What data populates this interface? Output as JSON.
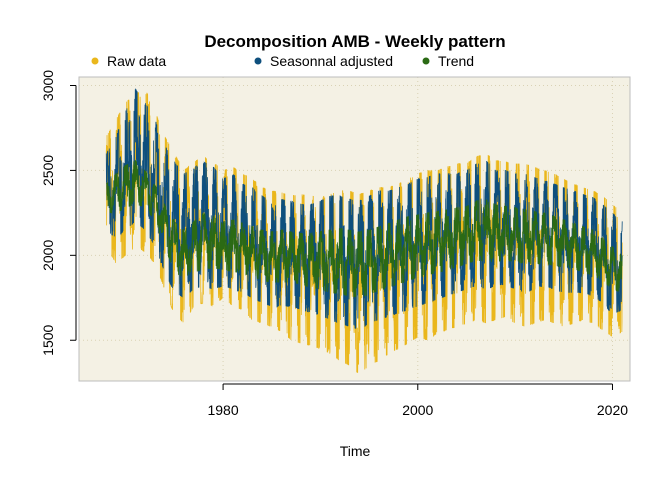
{
  "chart_data": {
    "type": "line",
    "title": "Decomposition AMB - Weekly pattern",
    "xlabel": "Time",
    "ylabel": "",
    "xlim": [
      1965.2,
      2021.8
    ],
    "ylim": [
      1260,
      3050
    ],
    "x_ticks": [
      1980,
      2000,
      2020
    ],
    "x_tick_labels": [
      "1980",
      "2000",
      "2020"
    ],
    "y_ticks": [
      1500,
      2000,
      2500,
      3000
    ],
    "y_tick_labels": [
      "1500",
      "2000",
      "2500",
      "3000"
    ],
    "grid": true,
    "legend_position": "top",
    "background_color": "#f4f1e4",
    "series": [
      {
        "name": "Raw data",
        "color": "#eab71c",
        "x": [
          1968.0,
          1969.0,
          1970.0,
          1971.0,
          1972.0,
          1973.0,
          1974.0,
          1975.0,
          1976.0,
          1977.0,
          1978.0,
          1979.0,
          1980.0,
          1981.0,
          1982.0,
          1983.0,
          1984.0,
          1985.0,
          1986.0,
          1987.0,
          1988.0,
          1989.0,
          1990.0,
          1991.0,
          1992.0,
          1993.0,
          1994.0,
          1995.0,
          1996.0,
          1997.0,
          1998.0,
          1999.0,
          2000.0,
          2001.0,
          2002.0,
          2003.0,
          2004.0,
          2005.0,
          2006.0,
          2007.0,
          2008.0,
          2009.0,
          2010.0,
          2011.0,
          2012.0,
          2013.0,
          2014.0,
          2015.0,
          2016.0,
          2017.0,
          2018.0,
          2019.0,
          2020.0,
          2021.0
        ],
        "min": [
          2050,
          1950,
          2000,
          2050,
          2020,
          1950,
          1800,
          1650,
          1600,
          1700,
          1720,
          1700,
          1750,
          1700,
          1680,
          1620,
          1600,
          1580,
          1550,
          1500,
          1480,
          1470,
          1450,
          1420,
          1380,
          1350,
          1300,
          1350,
          1380,
          1420,
          1450,
          1480,
          1520,
          1500,
          1540,
          1560,
          1580,
          1600,
          1620,
          1600,
          1620,
          1640,
          1600,
          1580,
          1600,
          1620,
          1600,
          1580,
          1600,
          1620,
          1600,
          1560,
          1520,
          1550
        ],
        "max": [
          2700,
          2800,
          2900,
          2950,
          2980,
          2850,
          2700,
          2600,
          2500,
          2550,
          2580,
          2550,
          2500,
          2520,
          2480,
          2450,
          2400,
          2380,
          2370,
          2350,
          2360,
          2350,
          2340,
          2360,
          2380,
          2380,
          2360,
          2380,
          2400,
          2400,
          2420,
          2450,
          2480,
          2500,
          2500,
          2520,
          2540,
          2540,
          2580,
          2600,
          2560,
          2550,
          2540,
          2540,
          2520,
          2500,
          2480,
          2450,
          2420,
          2400,
          2380,
          2350,
          2300,
          2250
        ]
      },
      {
        "name": "Seasonnal adjusted",
        "color": "#0e4f7d",
        "x": [
          1968.0,
          1969.0,
          1970.0,
          1971.0,
          1972.0,
          1973.0,
          1974.0,
          1975.0,
          1976.0,
          1977.0,
          1978.0,
          1979.0,
          1980.0,
          1981.0,
          1982.0,
          1983.0,
          1984.0,
          1985.0,
          1986.0,
          1987.0,
          1988.0,
          1989.0,
          1990.0,
          1991.0,
          1992.0,
          1993.0,
          1994.0,
          1995.0,
          1996.0,
          1997.0,
          1998.0,
          1999.0,
          2000.0,
          2001.0,
          2002.0,
          2003.0,
          2004.0,
          2005.0,
          2006.0,
          2007.0,
          2008.0,
          2009.0,
          2010.0,
          2011.0,
          2012.0,
          2013.0,
          2014.0,
          2015.0,
          2016.0,
          2017.0,
          2018.0,
          2019.0,
          2020.0,
          2021.0
        ],
        "min": [
          2150,
          2100,
          2150,
          2200,
          2150,
          2050,
          1900,
          1780,
          1750,
          1800,
          1820,
          1800,
          1820,
          1800,
          1780,
          1750,
          1720,
          1700,
          1700,
          1700,
          1680,
          1660,
          1650,
          1620,
          1600,
          1580,
          1560,
          1600,
          1620,
          1640,
          1660,
          1680,
          1700,
          1720,
          1740,
          1760,
          1780,
          1800,
          1820,
          1800,
          1820,
          1830,
          1800,
          1780,
          1800,
          1820,
          1800,
          1780,
          1780,
          1780,
          1760,
          1720,
          1650,
          1680
        ],
        "max": [
          2600,
          2700,
          2850,
          2980,
          2900,
          2800,
          2650,
          2550,
          2480,
          2520,
          2550,
          2520,
          2450,
          2480,
          2420,
          2400,
          2350,
          2320,
          2330,
          2320,
          2300,
          2300,
          2320,
          2350,
          2350,
          2330,
          2320,
          2350,
          2380,
          2380,
          2400,
          2420,
          2450,
          2460,
          2480,
          2480,
          2480,
          2500,
          2540,
          2560,
          2500,
          2500,
          2480,
          2480,
          2460,
          2440,
          2420,
          2400,
          2380,
          2360,
          2340,
          2300,
          2250,
          2200
        ]
      },
      {
        "name": "Trend",
        "color": "#2b6a14",
        "x": [
          1968.0,
          1969.0,
          1970.0,
          1971.0,
          1972.0,
          1973.0,
          1974.0,
          1975.0,
          1976.0,
          1977.0,
          1978.0,
          1979.0,
          1980.0,
          1981.0,
          1982.0,
          1983.0,
          1984.0,
          1985.0,
          1986.0,
          1987.0,
          1988.0,
          1989.0,
          1990.0,
          1991.0,
          1992.0,
          1993.0,
          1994.0,
          1995.0,
          1996.0,
          1997.0,
          1998.0,
          1999.0,
          2000.0,
          2001.0,
          2002.0,
          2003.0,
          2004.0,
          2005.0,
          2006.0,
          2007.0,
          2008.0,
          2009.0,
          2010.0,
          2011.0,
          2012.0,
          2013.0,
          2014.0,
          2015.0,
          2016.0,
          2017.0,
          2018.0,
          2019.0,
          2020.0,
          2021.0
        ],
        "min": [
          2250,
          2250,
          2280,
          2300,
          2280,
          2200,
          2050,
          1900,
          1870,
          1900,
          1920,
          1920,
          1920,
          1900,
          1890,
          1880,
          1850,
          1840,
          1840,
          1840,
          1830,
          1810,
          1800,
          1780,
          1770,
          1760,
          1750,
          1770,
          1790,
          1810,
          1830,
          1850,
          1870,
          1880,
          1900,
          1910,
          1930,
          1950,
          1970,
          1960,
          1960,
          1970,
          1960,
          1950,
          1950,
          1950,
          1940,
          1930,
          1920,
          1900,
          1880,
          1850,
          1800,
          1780
        ],
        "max": [
          2420,
          2480,
          2530,
          2560,
          2500,
          2420,
          2300,
          2200,
          2150,
          2200,
          2250,
          2230,
          2200,
          2210,
          2190,
          2170,
          2150,
          2140,
          2150,
          2140,
          2130,
          2130,
          2140,
          2150,
          2160,
          2150,
          2140,
          2150,
          2170,
          2190,
          2210,
          2230,
          2240,
          2250,
          2260,
          2270,
          2280,
          2290,
          2320,
          2330,
          2300,
          2290,
          2280,
          2270,
          2260,
          2250,
          2230,
          2210,
          2190,
          2170,
          2150,
          2100,
          2050,
          2000
        ]
      }
    ]
  }
}
